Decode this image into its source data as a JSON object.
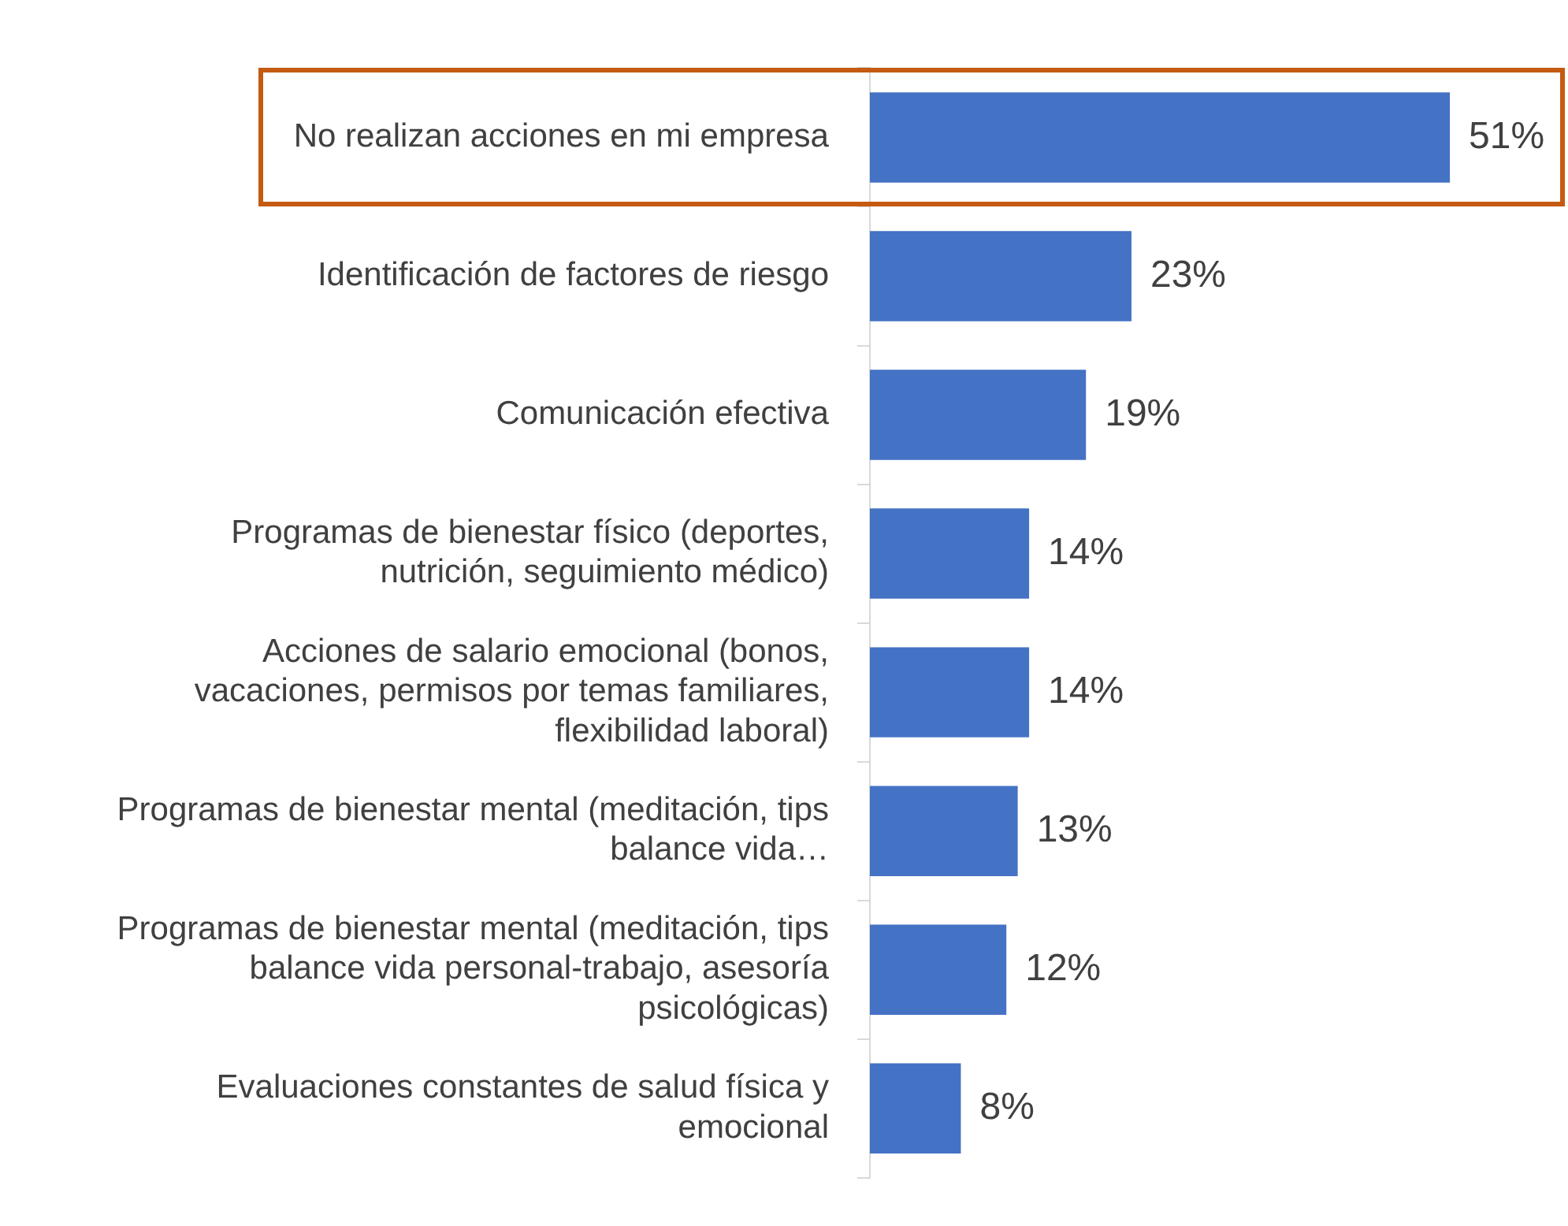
{
  "chart_data": {
    "type": "bar",
    "orientation": "horizontal",
    "tick_labels": "y",
    "categories": [
      "No realizan acciones en mi empresa",
      "Identificación de factores de riesgo",
      "Comunicación efectiva",
      "Programas de bienestar físico (deportes, nutrición, seguimiento médico)",
      "Acciones de salario emocional (bonos, vacaciones, permisos por temas familiares, flexibilidad laboral)",
      "Programas de bienestar mental (meditación, tips balance vida…",
      "Programas de bienestar mental (meditación, tips balance vida personal-trabajo, asesoría psicológicas)",
      "Evaluaciones constantes de salud física y emocional"
    ],
    "values": [
      51,
      23,
      19,
      14,
      14,
      13,
      12,
      8
    ],
    "value_labels": [
      "51%",
      "23%",
      "19%",
      "14%",
      "14%",
      "13%",
      "12%",
      "8%"
    ],
    "color": "#4472c4"
  }
}
